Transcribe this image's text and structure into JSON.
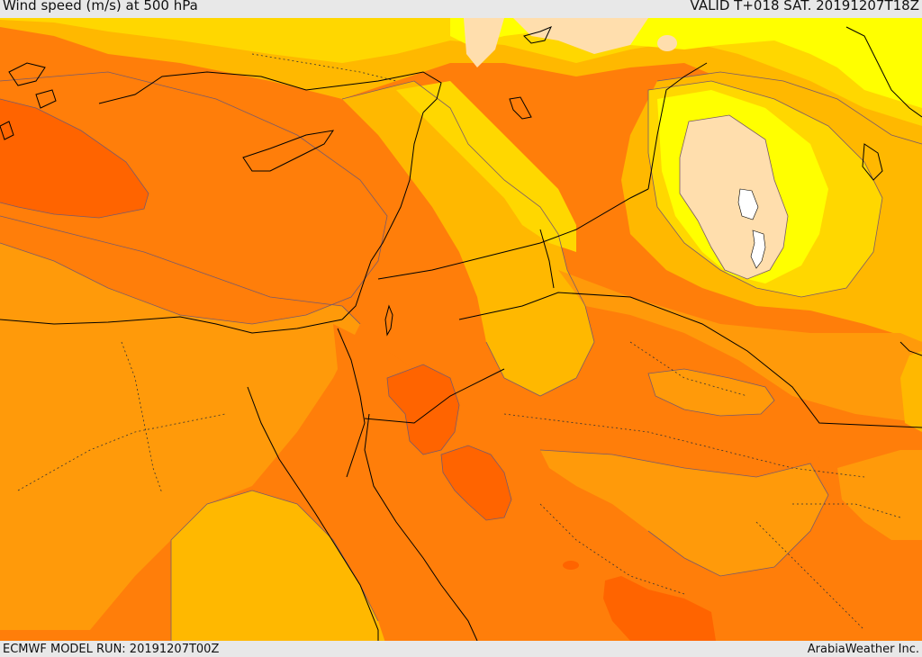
{
  "header": {
    "title": "Wind speed (m/s) at 500 hPa",
    "valid": "VALID T+018 SAT. 20191207T18Z"
  },
  "footer": {
    "model_run": "ECMWF MODEL RUN: 20191207T00Z",
    "credit": "ArabiaWeather Inc."
  },
  "map": {
    "variable": "wind speed",
    "level": "500 hPa",
    "colors": {
      "darkest_orange": "#ff6400",
      "dark_orange": "#ff7e0a",
      "orange": "#ff9a0a",
      "light_orange": "#ffb800",
      "gold": "#ffd700",
      "yellow": "#ffff00",
      "light_tan": "#ffdead",
      "white": "#ffffff"
    }
  }
}
